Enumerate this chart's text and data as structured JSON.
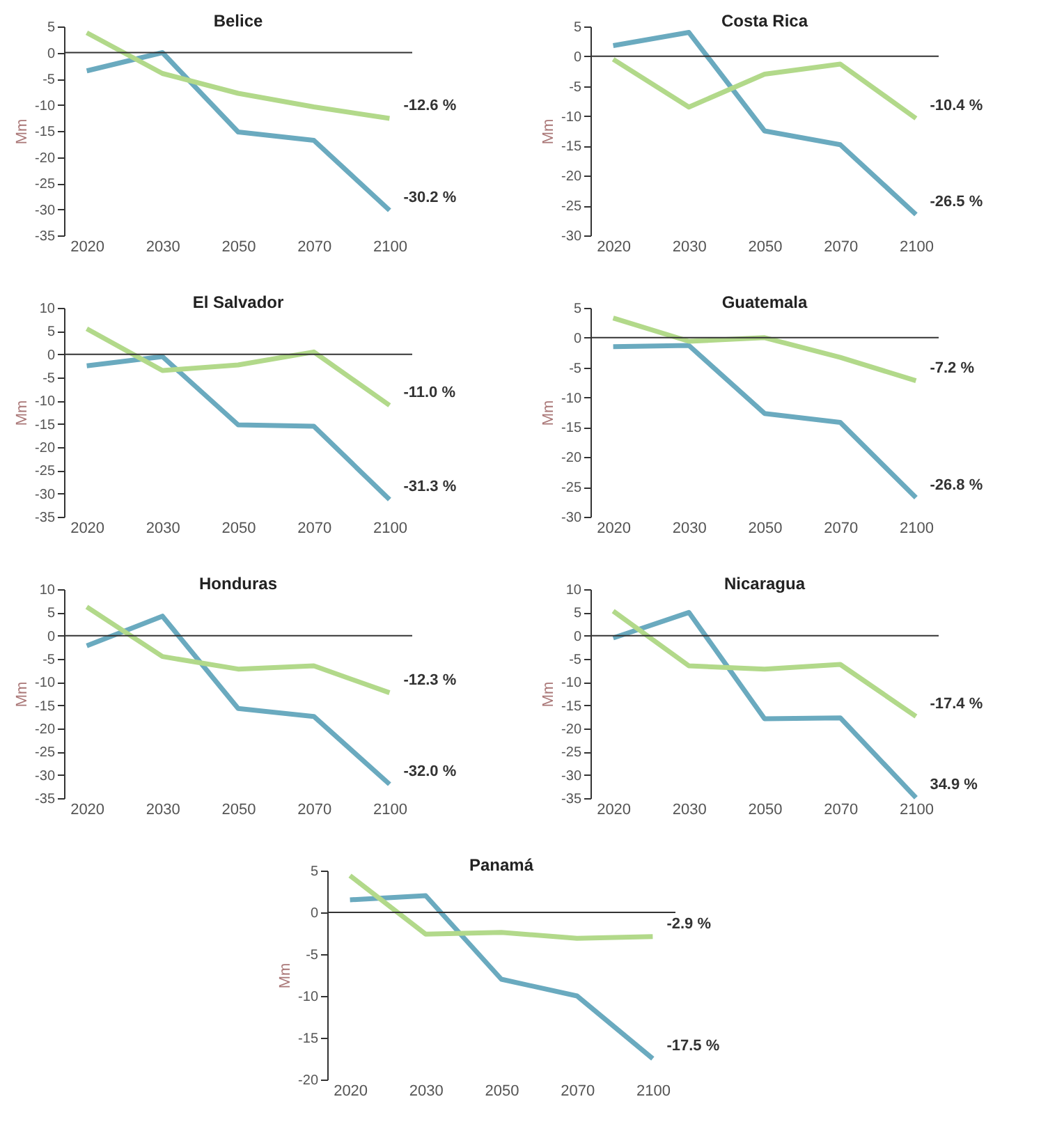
{
  "chart_data": [
    {
      "type": "line",
      "title": "Belice",
      "ylabel": "Mm",
      "categories": [
        "2020",
        "2030",
        "2050",
        "2070",
        "2100"
      ],
      "ylim": [
        -35,
        5
      ],
      "yticks": [
        -35,
        -30,
        -25,
        -20,
        -15,
        -10,
        -5,
        0,
        5
      ],
      "ref_lines": [
        {
          "axis": "y",
          "value": 0
        }
      ],
      "annotations": [
        "-30.2 %",
        "-12.6 %"
      ],
      "series": [
        {
          "color": "#6aaabf",
          "values": [
            -3.5,
            0,
            -15.2,
            -16.8,
            -30.2
          ]
        },
        {
          "color": "#b2d98a",
          "values": [
            3.8,
            -4,
            -7.8,
            -10.4,
            -12.6
          ]
        }
      ]
    },
    {
      "type": "line",
      "title": "Costa Rica",
      "ylabel": "Mm",
      "categories": [
        "2020",
        "2030",
        "2050",
        "2070",
        "2100"
      ],
      "ylim": [
        -30,
        5
      ],
      "yticks": [
        -30,
        -25,
        -20,
        -15,
        -10,
        -5,
        0,
        5
      ],
      "ref_lines": [
        {
          "axis": "y",
          "value": 0
        }
      ],
      "annotations": [
        "-26.5 %",
        "-10.4 %"
      ],
      "series": [
        {
          "color": "#6aaabf",
          "values": [
            1.8,
            4,
            -12.5,
            -14.8,
            -26.5
          ]
        },
        {
          "color": "#b2d98a",
          "values": [
            -0.5,
            -8.5,
            -3,
            -1.3,
            -10.4
          ]
        }
      ]
    },
    {
      "type": "line",
      "title": "El Salvador",
      "ylabel": "Mm",
      "categories": [
        "2020",
        "2030",
        "2050",
        "2070",
        "2100"
      ],
      "ylim": [
        -35,
        10
      ],
      "yticks": [
        -35,
        -30,
        -25,
        -20,
        -15,
        -10,
        -5,
        0,
        5,
        10
      ],
      "ref_lines": [
        {
          "axis": "y",
          "value": 0
        }
      ],
      "annotations": [
        "-31.3 %",
        "-11.0 %"
      ],
      "series": [
        {
          "color": "#6aaabf",
          "values": [
            -2.5,
            -0.5,
            -15.2,
            -15.5,
            -31.3
          ]
        },
        {
          "color": "#b2d98a",
          "values": [
            5.5,
            -3.5,
            -2.3,
            0.5,
            -11
          ]
        }
      ]
    },
    {
      "type": "line",
      "title": "Guatemala",
      "ylabel": "Mm",
      "categories": [
        "2020",
        "2030",
        "2050",
        "2070",
        "2100"
      ],
      "ylim": [
        -30,
        5
      ],
      "yticks": [
        -30,
        -25,
        -20,
        -15,
        -10,
        -5,
        0,
        5
      ],
      "ref_lines": [
        {
          "axis": "y",
          "value": 0
        }
      ],
      "annotations": [
        "-26.8 %",
        "-7.2 %"
      ],
      "series": [
        {
          "color": "#6aaabf",
          "values": [
            -1.5,
            -1.3,
            -12.7,
            -14.2,
            -26.8
          ]
        },
        {
          "color": "#b2d98a",
          "values": [
            3.3,
            -0.6,
            0,
            -3.3,
            -7.2
          ]
        }
      ]
    },
    {
      "type": "line",
      "title": "Honduras",
      "ylabel": "Mm",
      "categories": [
        "2020",
        "2030",
        "2050",
        "2070",
        "2100"
      ],
      "ylim": [
        -35,
        10
      ],
      "yticks": [
        -35,
        -30,
        -25,
        -20,
        -15,
        -10,
        -5,
        0,
        5,
        10
      ],
      "ref_lines": [
        {
          "axis": "y",
          "value": 0
        }
      ],
      "annotations": [
        "-32.0 %",
        "-12.3 %"
      ],
      "series": [
        {
          "color": "#6aaabf",
          "values": [
            -2.2,
            4.2,
            -15.7,
            -17.4,
            -32
          ]
        },
        {
          "color": "#b2d98a",
          "values": [
            6.2,
            -4.5,
            -7.2,
            -6.5,
            -12.3
          ]
        }
      ]
    },
    {
      "type": "line",
      "title": "Nicaragua",
      "ylabel": "Mm",
      "categories": [
        "2020",
        "2030",
        "2050",
        "2070",
        "2100"
      ],
      "ylim": [
        -35,
        10
      ],
      "yticks": [
        -35,
        -30,
        -25,
        -20,
        -15,
        -10,
        -5,
        0,
        5,
        10
      ],
      "ref_lines": [
        {
          "axis": "y",
          "value": 0
        }
      ],
      "annotations": [
        "34.9 %",
        "-17.4 %"
      ],
      "series": [
        {
          "color": "#6aaabf",
          "values": [
            -0.5,
            5,
            -17.9,
            -17.7,
            -34.9
          ]
        },
        {
          "color": "#b2d98a",
          "values": [
            5.3,
            -6.5,
            -7.2,
            -6.2,
            -17.4
          ]
        }
      ]
    },
    {
      "type": "line",
      "title": "Panamá",
      "ylabel": "Mm",
      "categories": [
        "2020",
        "2030",
        "2050",
        "2070",
        "2100"
      ],
      "ylim": [
        -20,
        5
      ],
      "yticks": [
        -20,
        -15,
        -10,
        -5,
        0,
        5
      ],
      "ref_lines": [
        {
          "axis": "y",
          "value": 0
        }
      ],
      "annotations": [
        "-17.5 %",
        "-2.9 %"
      ],
      "series": [
        {
          "color": "#6aaabf",
          "values": [
            1.5,
            2,
            -8,
            -10,
            -17.5
          ]
        },
        {
          "color": "#b2d98a",
          "values": [
            4.4,
            -2.6,
            -2.4,
            -3.1,
            -2.9
          ]
        }
      ]
    }
  ]
}
